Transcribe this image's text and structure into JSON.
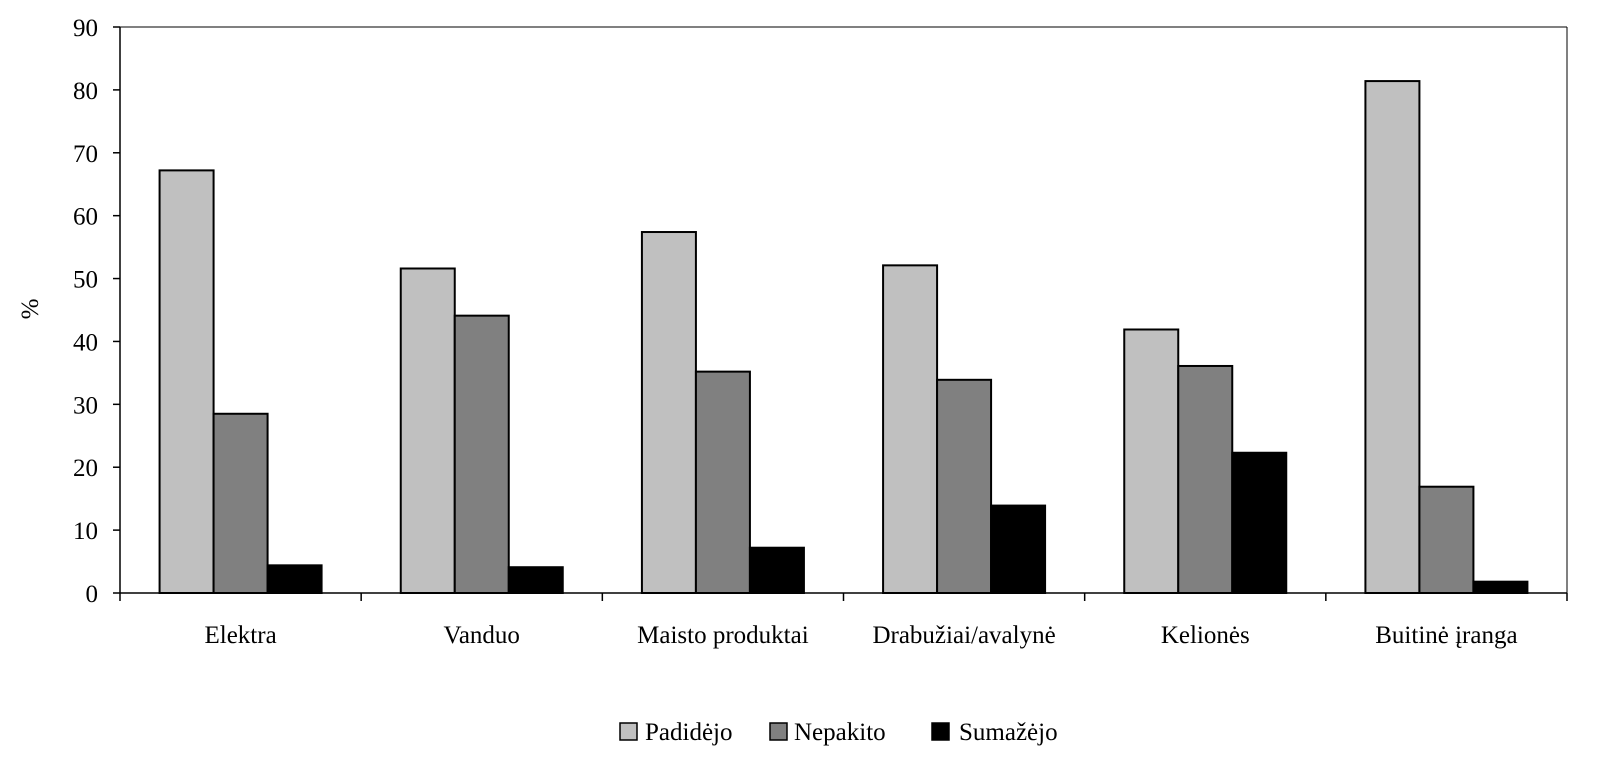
{
  "chart_data": {
    "type": "bar",
    "title": "",
    "xlabel": "",
    "ylabel": "%",
    "ylim": [
      0,
      90
    ],
    "yticks": [
      0,
      10,
      20,
      30,
      40,
      50,
      60,
      70,
      80,
      90
    ],
    "categories": [
      "Elektra",
      "Vanduo",
      "Maisto produktai",
      "Drabužiai/avalynė",
      "Kelionės",
      "Buitinė įranga"
    ],
    "series": [
      {
        "name": "Padidėjo",
        "color": "#c0c0c0",
        "values": [
          67.2,
          51.6,
          57.4,
          52.1,
          41.9,
          81.4
        ]
      },
      {
        "name": "Nepakito",
        "color": "#808080",
        "values": [
          28.5,
          44.1,
          35.2,
          33.9,
          36.1,
          16.9
        ]
      },
      {
        "name": "Sumažėjo",
        "color": "#000000",
        "values": [
          4.4,
          4.1,
          7.2,
          13.9,
          22.3,
          1.8
        ]
      }
    ],
    "grid": false,
    "legend_position": "bottom-center"
  }
}
